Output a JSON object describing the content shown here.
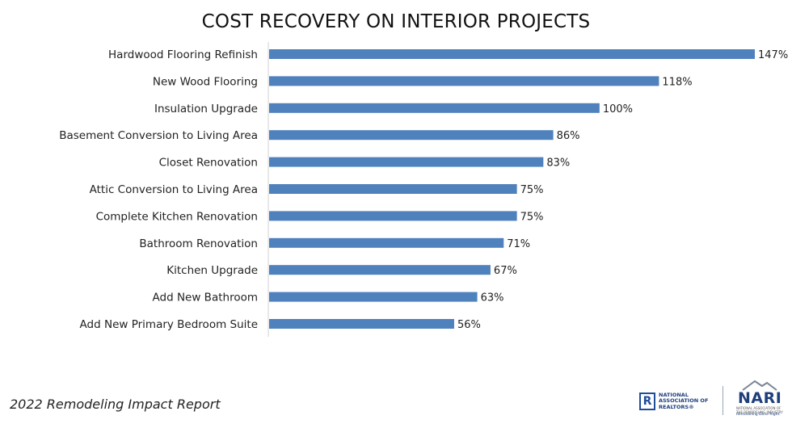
{
  "chart_data": {
    "type": "bar",
    "orientation": "horizontal",
    "title": "COST RECOVERY ON INTERIOR PROJECTS",
    "categories": [
      "Hardwood Flooring Refinish",
      "New Wood Flooring",
      "Insulation Upgrade",
      "Basement Conversion to Living Area",
      "Closet Renovation",
      "Attic Conversion to Living Area",
      "Complete Kitchen Renovation",
      "Bathroom Renovation",
      "Kitchen Upgrade",
      "Add New Bathroom",
      "Add New Primary Bedroom Suite"
    ],
    "values": [
      147,
      118,
      100,
      86,
      83,
      75,
      75,
      71,
      67,
      63,
      56
    ],
    "value_labels": [
      "147%",
      "118%",
      "100%",
      "86%",
      "83%",
      "75%",
      "75%",
      "71%",
      "67%",
      "63%",
      "56%"
    ],
    "xlim": [
      0,
      147
    ],
    "bar_color": "#4f81bd",
    "axis_color": "#d0d0d0",
    "grid": false,
    "legend": "none"
  },
  "footer": {
    "report": "2022 Remodeling Impact Report",
    "nar_logo_mark": "R",
    "nar_logo_text": "NATIONAL\nASSOCIATION OF\nREALTORS®",
    "nari_logo_text": "NARI",
    "nari_logo_subtext": "NATIONAL ASSOCIATION OF THE REMODELING INDUSTRY",
    "nari_logo_tagline": "Remodeling Done Right."
  }
}
